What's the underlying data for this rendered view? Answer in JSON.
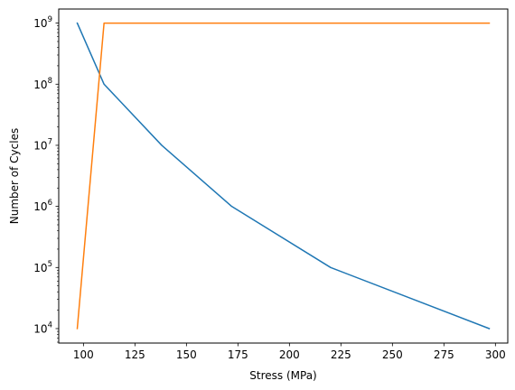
{
  "chart_data": {
    "type": "line",
    "title": "",
    "xlabel": "Stress (MPa)",
    "ylabel": "Number of Cycles",
    "xlim": [
      88,
      306
    ],
    "ylim": [
      5800,
      1700000000
    ],
    "yscale": "log",
    "grid": false,
    "xticks": [
      100,
      125,
      150,
      175,
      200,
      225,
      250,
      275,
      300
    ],
    "xtick_labels": [
      "100",
      "125",
      "150",
      "175",
      "200",
      "225",
      "250",
      "275",
      "300"
    ],
    "yticks": [
      10000,
      100000,
      1000000,
      10000000,
      100000000,
      1000000000
    ],
    "ytick_labels": [
      {
        "base": "10",
        "exp": "4"
      },
      {
        "base": "10",
        "exp": "5"
      },
      {
        "base": "10",
        "exp": "6"
      },
      {
        "base": "10",
        "exp": "7"
      },
      {
        "base": "10",
        "exp": "8"
      },
      {
        "base": "10",
        "exp": "9"
      }
    ],
    "series": [
      {
        "color": "#1f77b4",
        "x": [
          97,
          110,
          138,
          172,
          220,
          297
        ],
        "y": [
          1000000000,
          100000000,
          10000000,
          1000000,
          100000,
          10000
        ]
      },
      {
        "color": "#ff7f0e",
        "x": [
          97,
          110,
          297
        ],
        "y": [
          10000,
          1000000000,
          1000000000
        ]
      }
    ]
  }
}
